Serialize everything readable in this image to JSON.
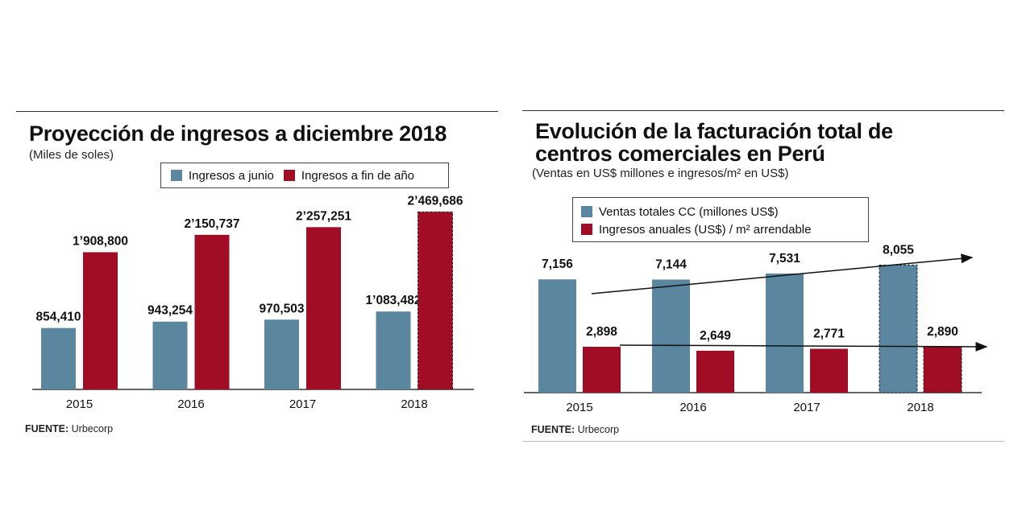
{
  "chart_data": [
    {
      "type": "bar",
      "title": "Proyección de ingresos a diciembre 2018",
      "subtitle": "(Miles de soles)",
      "categories": [
        "2015",
        "2016",
        "2017",
        "2018"
      ],
      "series": [
        {
          "name": "Ingresos a junio",
          "color": "#5b86a0",
          "values": [
            854410,
            943254,
            970503,
            1083482
          ],
          "labels": [
            "854,410",
            "943,254",
            "970,503",
            "1’083,482"
          ]
        },
        {
          "name": "Ingresos a fin de año",
          "color": "#a00d25",
          "values": [
            1908800,
            2150737,
            2257251,
            2469686
          ],
          "labels": [
            "1’908,800",
            "2’150,737",
            "2’257,251",
            "2’469,686"
          ]
        }
      ],
      "projected": [
        {
          "series": 1,
          "category": "2018"
        }
      ],
      "ylim": [
        0,
        2800000
      ],
      "grid": false,
      "legend": "top-right",
      "source_label": "FUENTE:",
      "source": "Urbecorp"
    },
    {
      "type": "bar",
      "title": [
        "Evolución de la facturación total de",
        "centros comerciales en Perú"
      ],
      "subtitle": "(Ventas en US$ millones e ingresos/m² en US$)",
      "categories": [
        "2015",
        "2016",
        "2017",
        "2018"
      ],
      "series": [
        {
          "name": "Ventas totales CC (millones US$)",
          "color": "#5b86a0",
          "values": [
            7156,
            7144,
            7531,
            8055
          ],
          "labels": [
            "7,156",
            "7,144",
            "7,531",
            "8,055"
          ]
        },
        {
          "name": "Ingresos anuales (US$) / m² arrendable",
          "color": "#a00d25",
          "values": [
            2898,
            2649,
            2771,
            2890
          ],
          "labels": [
            "2,898",
            "2,649",
            "2,771",
            "2,890"
          ]
        }
      ],
      "projected": [
        {
          "series": 0,
          "category": "2018"
        },
        {
          "series": 1,
          "category": "2018"
        }
      ],
      "trend_arrows": true,
      "grid": false,
      "legend": "top-left",
      "source_label": "FUENTE:",
      "source": "Urbecorp"
    }
  ]
}
